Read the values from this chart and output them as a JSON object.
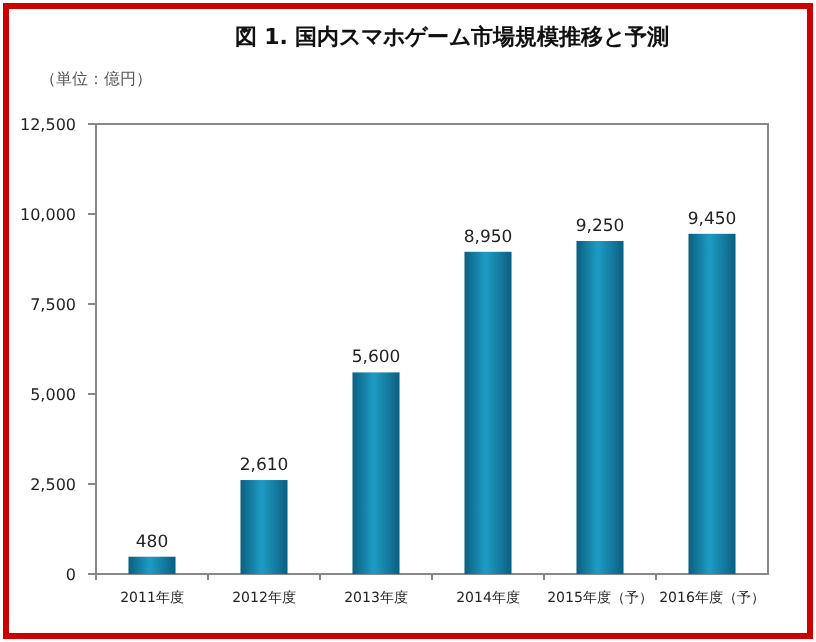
{
  "chart_data": {
    "type": "bar",
    "title": "図 1. 国内スマホゲーム市場規模推移と予測",
    "ylabel": "（単位：億円）",
    "categories": [
      "2011年度",
      "2012年度",
      "2013年度",
      "2014年度",
      "2015年度（予）",
      "2016年度（予）"
    ],
    "values": [
      480,
      2610,
      5600,
      8950,
      9250,
      9450
    ],
    "color": "#1e9cc4",
    "value_labels": [
      "480",
      "2,610",
      "5,600",
      "8,950",
      "9,250",
      "9,450"
    ],
    "ylim": [
      0,
      12500
    ],
    "yticks": [
      {
        "value": 0,
        "label": "0"
      },
      {
        "value": 2500,
        "label": "2,500"
      },
      {
        "value": 5000,
        "label": "5,000"
      },
      {
        "value": 7500,
        "label": "7,500"
      },
      {
        "value": 10000,
        "label": "10,000"
      },
      {
        "value": 12500,
        "label": "12,500"
      }
    ],
    "grid": false
  }
}
